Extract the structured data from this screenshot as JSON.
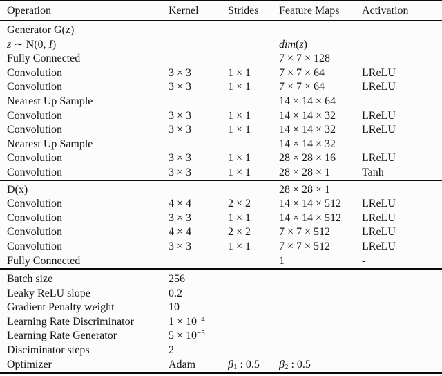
{
  "page": {
    "background": "#fcfcfc",
    "text_color": "#151515",
    "rule_color": "#0a0a0a"
  },
  "table": {
    "headers": [
      "Operation",
      "Kernel",
      "Strides",
      "Feature Maps",
      "Activation"
    ],
    "sections": [
      {
        "name": "generator",
        "rows": [
          {
            "cells": [
              "Generator G(z)",
              "",
              "",
              "",
              ""
            ]
          },
          {
            "cells": [
              "<i>z</i> ∼ N(0, <i>I</i>)",
              "",
              "",
              "<i>dim</i>(<i>z</i>)",
              ""
            ]
          },
          {
            "cells": [
              "Fully Connected",
              "",
              "",
              "7 × 7 × 128",
              ""
            ]
          },
          {
            "cells": [
              "Convolution",
              "3 × 3",
              "1 × 1",
              "7 × 7 × 64",
              "LReLU"
            ]
          },
          {
            "cells": [
              "Convolution",
              "3 × 3",
              "1 × 1",
              "7 × 7 × 64",
              "LReLU"
            ]
          },
          {
            "cells": [
              "Nearest Up Sample",
              "",
              "",
              "14 × 14 × 64",
              ""
            ]
          },
          {
            "cells": [
              "Convolution",
              "3 × 3",
              "1 × 1",
              "14 × 14 × 32",
              "LReLU"
            ]
          },
          {
            "cells": [
              "Convolution",
              "3 × 3",
              "1 × 1",
              "14 × 14 × 32",
              "LReLU"
            ]
          },
          {
            "cells": [
              "Nearest Up Sample",
              "",
              "",
              "14 × 14 × 32",
              ""
            ]
          },
          {
            "cells": [
              "Convolution",
              "3 × 3",
              "1 × 1",
              "28 × 28 × 16",
              "LReLU"
            ]
          },
          {
            "cells": [
              "Convolution",
              "3 × 3",
              "1 × 1",
              "28 × 28 × 1",
              "Tanh"
            ]
          }
        ]
      },
      {
        "name": "discriminator",
        "rows": [
          {
            "cells": [
              "D(x)",
              "",
              "",
              "28 × 28 × 1",
              ""
            ]
          },
          {
            "cells": [
              "Convolution",
              "4 × 4",
              "2 × 2",
              "14 × 14 × 512",
              "LReLU"
            ]
          },
          {
            "cells": [
              "Convolution",
              "3 × 3",
              "1 × 1",
              "14 × 14 × 512",
              "LReLU"
            ]
          },
          {
            "cells": [
              "Convolution",
              "4 × 4",
              "2 × 2",
              "7 × 7 × 512",
              "LReLU"
            ]
          },
          {
            "cells": [
              "Convolution",
              "3 × 3",
              "1 × 1",
              "7 × 7 × 512",
              "LReLU"
            ]
          },
          {
            "cells": [
              "Fully Connected",
              "",
              "",
              "1",
              "-"
            ]
          }
        ]
      },
      {
        "name": "hyperparameters",
        "rows": [
          {
            "cells": [
              "Batch size",
              "256",
              "",
              "",
              ""
            ]
          },
          {
            "cells": [
              "Leaky ReLU slope",
              "0.2",
              "",
              "",
              ""
            ]
          },
          {
            "cells": [
              "Gradient Penalty weight",
              "10",
              "",
              "",
              ""
            ]
          },
          {
            "cells": [
              "Learning Rate Discriminator",
              "1 × 10<sup>−4</sup>",
              "",
              "",
              ""
            ]
          },
          {
            "cells": [
              "Learning Rate Generator",
              "5 × 10<sup>−5</sup>",
              "",
              "",
              ""
            ]
          },
          {
            "cells": [
              "Disciminator steps",
              "2",
              "",
              "",
              ""
            ]
          },
          {
            "cells": [
              "Optimizer",
              "Adam",
              "<i>β</i><sub>1</sub> : 0.5",
              "<i>β</i><sub>2</sub> : 0.5",
              ""
            ]
          }
        ]
      }
    ]
  }
}
